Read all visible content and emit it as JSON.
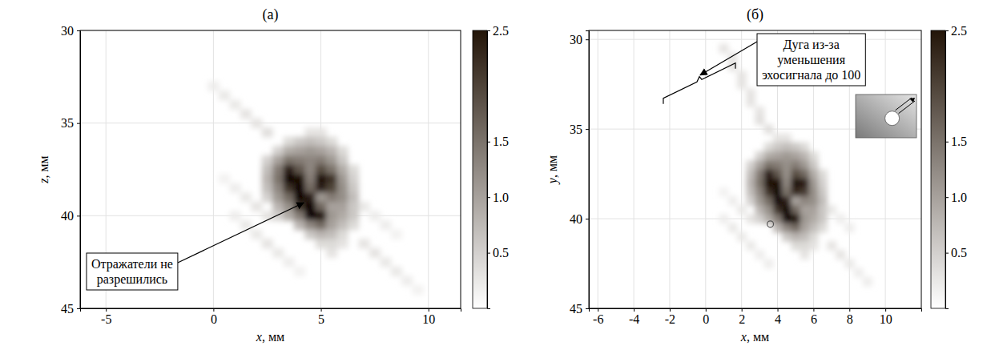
{
  "chart_data": [
    {
      "type": "heatmap",
      "title": "(а)",
      "x_label": "x, мм",
      "y_label": "z, мм",
      "xlim": [
        -6.2,
        11.5
      ],
      "xticks": [
        -5,
        0,
        5,
        10
      ],
      "ylim": [
        45,
        30
      ],
      "yticks": [
        30,
        35,
        40,
        45
      ],
      "grid": true,
      "cell_size": [
        0.5,
        0.5
      ],
      "cells": [
        [
          0,
          33,
          0.2
        ],
        [
          0.5,
          33.5,
          0.25
        ],
        [
          1,
          34,
          0.25
        ],
        [
          1.5,
          34.5,
          0.3
        ],
        [
          2,
          35,
          0.3
        ],
        [
          2.5,
          35.5,
          0.35
        ],
        [
          1,
          40,
          0.2
        ],
        [
          1.5,
          40.5,
          0.25
        ],
        [
          2,
          41,
          0.25
        ],
        [
          2.5,
          41.5,
          0.3
        ],
        [
          3,
          42,
          0.25
        ],
        [
          3.5,
          42.5,
          0.2
        ],
        [
          4,
          43,
          0.15
        ],
        [
          7,
          41.5,
          0.3
        ],
        [
          7.5,
          42,
          0.3
        ],
        [
          8,
          42.5,
          0.25
        ],
        [
          8.5,
          43,
          0.25
        ],
        [
          9,
          43.5,
          0.2
        ],
        [
          9.5,
          44,
          0.15
        ],
        [
          7,
          39.5,
          0.25
        ],
        [
          7.5,
          40,
          0.2
        ],
        [
          8,
          40.5,
          0.2
        ],
        [
          8.5,
          41,
          0.15
        ],
        [
          0.5,
          38,
          0.15
        ],
        [
          1,
          38.5,
          0.2
        ],
        [
          1.5,
          39,
          0.25
        ],
        [
          2,
          39.5,
          0.3
        ],
        [
          2.5,
          40,
          0.3
        ],
        [
          4.5,
          35.5,
          0.3
        ],
        [
          5,
          35.5,
          0.3
        ],
        [
          3.5,
          36,
          0.4
        ],
        [
          4,
          36,
          0.6
        ],
        [
          4.5,
          36,
          0.7
        ],
        [
          5,
          36,
          0.6
        ],
        [
          5.5,
          36,
          0.4
        ],
        [
          3,
          36.5,
          0.5
        ],
        [
          3.5,
          36.5,
          0.9
        ],
        [
          4,
          36.5,
          1.0
        ],
        [
          4.5,
          36.5,
          1.1
        ],
        [
          5,
          36.5,
          1.0
        ],
        [
          5.5,
          36.5,
          0.8
        ],
        [
          6,
          36.5,
          0.4
        ],
        [
          2.5,
          37,
          0.5
        ],
        [
          3,
          37,
          1.0
        ],
        [
          3.5,
          37,
          1.5
        ],
        [
          4,
          37,
          1.4
        ],
        [
          4.5,
          37,
          1.3
        ],
        [
          5,
          37,
          1.4
        ],
        [
          5.5,
          37,
          1.1
        ],
        [
          6,
          37,
          0.6
        ],
        [
          2.5,
          37.5,
          0.7
        ],
        [
          3,
          37.5,
          1.4
        ],
        [
          3.5,
          37.5,
          2.4
        ],
        [
          4,
          37.5,
          1.8
        ],
        [
          4.5,
          37.5,
          1.3
        ],
        [
          5,
          37.5,
          1.9
        ],
        [
          5.5,
          37.5,
          1.5
        ],
        [
          6,
          37.5,
          0.9
        ],
        [
          6.5,
          37.5,
          0.4
        ],
        [
          2.5,
          38,
          0.8
        ],
        [
          3,
          38,
          1.5
        ],
        [
          3.5,
          38,
          2.7
        ],
        [
          4,
          38,
          2.6
        ],
        [
          4.5,
          38,
          1.4
        ],
        [
          5,
          38,
          2.6
        ],
        [
          5.5,
          38,
          2.2
        ],
        [
          6,
          38,
          1.1
        ],
        [
          6.5,
          38,
          0.5
        ],
        [
          2.5,
          38.5,
          0.7
        ],
        [
          3,
          38.5,
          1.3
        ],
        [
          3.5,
          38.5,
          2.2
        ],
        [
          4,
          38.5,
          2.8
        ],
        [
          4.5,
          38.5,
          1.6
        ],
        [
          5,
          38.5,
          2.4
        ],
        [
          5.5,
          38.5,
          2.0
        ],
        [
          6,
          38.5,
          1.2
        ],
        [
          6.5,
          38.5,
          0.6
        ],
        [
          2.5,
          39,
          0.5
        ],
        [
          3,
          39,
          1.1
        ],
        [
          3.5,
          39,
          1.6
        ],
        [
          4,
          39,
          2.8
        ],
        [
          4.5,
          39,
          2.4
        ],
        [
          5,
          39,
          1.1
        ],
        [
          5.5,
          39,
          1.4
        ],
        [
          6,
          39,
          1.2
        ],
        [
          6.5,
          39,
          0.7
        ],
        [
          3,
          39.5,
          0.8
        ],
        [
          3.5,
          39.5,
          1.2
        ],
        [
          4,
          39.5,
          2.2
        ],
        [
          4.5,
          39.5,
          2.8
        ],
        [
          5,
          39.5,
          1.6
        ],
        [
          5.5,
          39.5,
          1.0
        ],
        [
          6,
          39.5,
          1.0
        ],
        [
          6.5,
          39.5,
          0.6
        ],
        [
          3,
          40,
          0.5
        ],
        [
          3.5,
          40,
          0.9
        ],
        [
          4,
          40,
          1.4
        ],
        [
          4.5,
          40,
          2.7
        ],
        [
          5,
          40,
          2.6
        ],
        [
          5.5,
          40,
          1.1
        ],
        [
          6,
          40,
          0.9
        ],
        [
          6.5,
          40,
          0.6
        ],
        [
          4,
          40.5,
          0.8
        ],
        [
          4.5,
          40.5,
          1.3
        ],
        [
          5,
          40.5,
          1.6
        ],
        [
          5.5,
          40.5,
          1.0
        ],
        [
          6,
          40.5,
          0.7
        ],
        [
          6.5,
          40.5,
          0.4
        ],
        [
          4.5,
          41,
          0.6
        ],
        [
          5,
          41,
          0.8
        ],
        [
          5.5,
          41,
          0.7
        ],
        [
          6,
          41,
          0.4
        ],
        [
          5,
          41.5,
          0.4
        ],
        [
          5.5,
          41.5,
          0.4
        ],
        [
          6,
          41.5,
          0.3
        ],
        [
          5.5,
          42,
          0.3
        ]
      ],
      "colorbar": {
        "range": [
          0,
          2.5
        ],
        "ticks": [
          0.5,
          {
            "value": 1,
            "label": "1.0"
          },
          1.5,
          2.5
        ]
      },
      "annotations": [
        {
          "text": "Отражатели не разрешились",
          "x": 4.2,
          "y": 39.3
        }
      ]
    },
    {
      "type": "heatmap",
      "title": "(б)",
      "x_label": "x, мм",
      "y_label": "y, мм",
      "xlim": [
        -6.5,
        12
      ],
      "xticks": [
        -6,
        -4,
        -2,
        0,
        2,
        4,
        6,
        8,
        10
      ],
      "ylim": [
        45,
        29.5
      ],
      "yticks": [
        30,
        35,
        40,
        45
      ],
      "grid": true,
      "cell_size": [
        0.5,
        0.5
      ],
      "cells": [
        [
          1,
          30.5,
          0.3
        ],
        [
          1.5,
          31,
          0.3
        ],
        [
          1.5,
          31.5,
          0.3
        ],
        [
          2,
          32,
          0.3
        ],
        [
          2,
          32.5,
          0.3
        ],
        [
          2.5,
          33,
          0.3
        ],
        [
          2.5,
          33.5,
          0.3
        ],
        [
          3,
          34,
          0.3
        ],
        [
          3,
          34.5,
          0.35
        ],
        [
          3.5,
          35,
          0.35
        ],
        [
          1,
          40,
          0.2
        ],
        [
          1.5,
          40.5,
          0.25
        ],
        [
          2,
          41,
          0.25
        ],
        [
          2.5,
          41.5,
          0.25
        ],
        [
          3,
          42,
          0.2
        ],
        [
          3.5,
          42.5,
          0.2
        ],
        [
          7,
          41.5,
          0.3
        ],
        [
          7.5,
          42,
          0.3
        ],
        [
          8,
          42.5,
          0.25
        ],
        [
          8.5,
          43,
          0.2
        ],
        [
          9,
          43.5,
          0.2
        ],
        [
          7,
          39.5,
          0.25
        ],
        [
          7.5,
          40,
          0.2
        ],
        [
          8,
          40.5,
          0.2
        ],
        [
          1,
          38.5,
          0.15
        ],
        [
          1.5,
          39,
          0.2
        ],
        [
          2,
          39.5,
          0.25
        ],
        [
          2.5,
          40,
          0.3
        ],
        [
          4,
          35.5,
          0.3
        ],
        [
          4.5,
          35.5,
          0.3
        ],
        [
          3.5,
          36,
          0.4
        ],
        [
          4,
          36,
          0.6
        ],
        [
          4.5,
          36,
          0.7
        ],
        [
          5,
          36,
          0.6
        ],
        [
          5.5,
          36,
          0.4
        ],
        [
          3,
          36.5,
          0.5
        ],
        [
          3.5,
          36.5,
          0.9
        ],
        [
          4,
          36.5,
          1.0
        ],
        [
          4.5,
          36.5,
          1.1
        ],
        [
          5,
          36.5,
          1.0
        ],
        [
          5.5,
          36.5,
          0.8
        ],
        [
          6,
          36.5,
          0.4
        ],
        [
          2.5,
          37,
          0.5
        ],
        [
          3,
          37,
          1.0
        ],
        [
          3.5,
          37,
          1.5
        ],
        [
          4,
          37,
          1.4
        ],
        [
          4.5,
          37,
          1.2
        ],
        [
          5,
          37,
          1.4
        ],
        [
          5.5,
          37,
          1.1
        ],
        [
          6,
          37,
          0.6
        ],
        [
          2.5,
          37.5,
          0.7
        ],
        [
          3,
          37.5,
          1.4
        ],
        [
          3.5,
          37.5,
          2.4
        ],
        [
          4,
          37.5,
          1.8
        ],
        [
          4.5,
          37.5,
          1.2
        ],
        [
          5,
          37.5,
          1.9
        ],
        [
          5.5,
          37.5,
          1.6
        ],
        [
          6,
          37.5,
          0.9
        ],
        [
          6.5,
          37.5,
          0.4
        ],
        [
          2.5,
          38,
          0.8
        ],
        [
          3,
          38,
          1.5
        ],
        [
          3.5,
          38,
          2.6
        ],
        [
          4,
          38,
          2.6
        ],
        [
          4.5,
          38,
          1.3
        ],
        [
          5,
          38,
          2.6
        ],
        [
          5.5,
          38,
          2.4
        ],
        [
          6,
          38,
          1.1
        ],
        [
          6.5,
          38,
          0.5
        ],
        [
          2.5,
          38.5,
          0.7
        ],
        [
          3,
          38.5,
          1.3
        ],
        [
          3.5,
          38.5,
          2.2
        ],
        [
          4,
          38.5,
          2.8
        ],
        [
          4.5,
          38.5,
          1.5
        ],
        [
          5,
          38.5,
          2.3
        ],
        [
          5.5,
          38.5,
          2.1
        ],
        [
          6,
          38.5,
          1.2
        ],
        [
          6.5,
          38.5,
          0.6
        ],
        [
          2.5,
          39,
          0.5
        ],
        [
          3,
          39,
          1.1
        ],
        [
          3.5,
          39,
          1.6
        ],
        [
          4,
          39,
          2.8
        ],
        [
          4.5,
          39,
          2.4
        ],
        [
          5,
          39,
          1.0
        ],
        [
          5.5,
          39,
          1.3
        ],
        [
          6,
          39,
          1.2
        ],
        [
          6.5,
          39,
          0.7
        ],
        [
          3,
          39.5,
          0.8
        ],
        [
          3.5,
          39.5,
          1.2
        ],
        [
          4,
          39.5,
          2.2
        ],
        [
          4.5,
          39.5,
          2.8
        ],
        [
          5,
          39.5,
          1.6
        ],
        [
          5.5,
          39.5,
          1.0
        ],
        [
          6,
          39.5,
          1.0
        ],
        [
          6.5,
          39.5,
          0.6
        ],
        [
          3,
          40,
          0.5
        ],
        [
          3.5,
          40,
          0.9
        ],
        [
          4,
          40,
          1.4
        ],
        [
          4.5,
          40,
          2.7
        ],
        [
          5,
          40,
          2.6
        ],
        [
          5.5,
          40,
          1.1
        ],
        [
          6,
          40,
          0.9
        ],
        [
          6.5,
          40,
          0.6
        ],
        [
          4,
          40.5,
          0.8
        ],
        [
          4.5,
          40.5,
          1.3
        ],
        [
          5,
          40.5,
          1.6
        ],
        [
          5.5,
          40.5,
          1.0
        ],
        [
          6,
          40.5,
          0.7
        ],
        [
          6.5,
          40.5,
          0.4
        ],
        [
          4.5,
          41,
          0.6
        ],
        [
          5,
          41,
          0.8
        ],
        [
          5.5,
          41,
          0.7
        ],
        [
          6,
          41,
          0.4
        ],
        [
          5,
          41.5,
          0.4
        ],
        [
          5.5,
          41.5,
          0.4
        ],
        [
          6,
          41.5,
          0.3
        ],
        [
          5.5,
          42,
          0.3
        ]
      ],
      "points": [
        {
          "x": 3.6,
          "y": 40.3
        }
      ],
      "marker": "circle",
      "colorbar": {
        "range": [
          0,
          2.5
        ],
        "ticks": [
          0.5,
          {
            "value": 1,
            "label": "1.0"
          },
          1.5,
          2.5
        ]
      },
      "annotations": [
        {
          "text": "Дуга из-за уменьшения эхосигнала до 100",
          "x": -0.35,
          "y": 32.3
        }
      ]
    }
  ]
}
